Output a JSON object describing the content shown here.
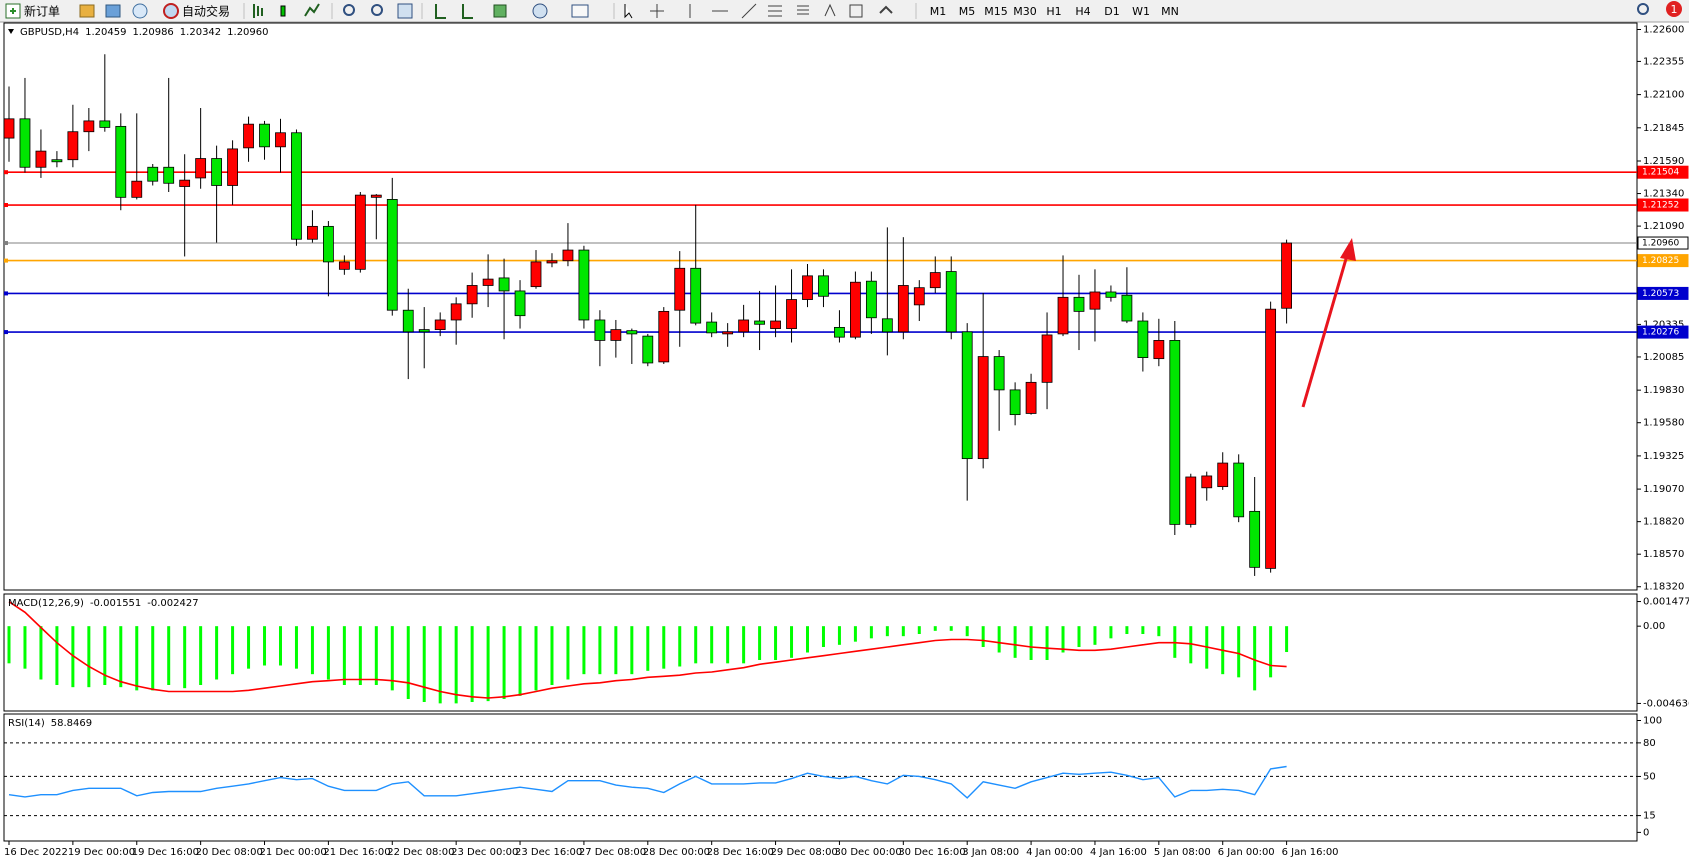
{
  "toolbar": {
    "new_order": "新订单",
    "auto_trading": "自动交易",
    "timeframes": [
      "M1",
      "M5",
      "M15",
      "M30",
      "H1",
      "H4",
      "D1",
      "W1",
      "MN"
    ],
    "notifications": 1
  },
  "chart_data": [
    {
      "type": "candlestick",
      "title": "GBPUSD,H4",
      "header_values": [
        1.20459,
        1.20986,
        1.20342,
        {
          "value": 1.2096,
          "label": "1.20960"
        }
      ],
      "categories": [
        "16 Dec 2022",
        null,
        null,
        null,
        "19 Dec 00:00",
        null,
        null,
        null,
        "19 Dec 16:00",
        null,
        null,
        null,
        "20 Dec 08:00",
        null,
        null,
        null,
        "21 Dec 00:00",
        null,
        null,
        null,
        "21 Dec 16:00",
        null,
        null,
        null,
        "22 Dec 08:00",
        null,
        null,
        null,
        "23 Dec 00:00",
        null,
        null,
        null,
        "23 Dec 16:00",
        null,
        null,
        null,
        "27 Dec 08:00",
        null,
        null,
        null,
        "28 Dec 00:00",
        null,
        null,
        null,
        "28 Dec 16:00",
        null,
        null,
        null,
        "29 Dec 08:00",
        null,
        null,
        null,
        "30 Dec 00:00",
        null,
        null,
        null,
        "30 Dec 16:00",
        null,
        null,
        null,
        "3 Jan 08:00",
        null,
        null,
        null,
        "4 Jan 00:00",
        null,
        null,
        null,
        "4 Jan 16:00",
        null,
        null,
        null,
        "5 Jan 08:00",
        null,
        null,
        null,
        "6 Jan 00:00",
        null,
        null,
        null,
        "6 Jan 16:00"
      ],
      "open": [
        1.21766,
        1.21914,
        1.21542,
        1.216,
        1.216,
        1.21815,
        1.21898,
        1.21856,
        1.21311,
        1.21542,
        1.21542,
        1.21394,
        1.2146,
        1.21609,
        1.21402,
        1.21691,
        1.21873,
        1.21699,
        1.21807,
        1.20989,
        1.21088,
        1.20758,
        1.20758,
        1.21311,
        1.21295,
        1.20444,
        1.20295,
        1.20295,
        1.20369,
        1.20493,
        1.20634,
        1.20692,
        1.20592,
        1.20625,
        1.20807,
        1.20824,
        1.20906,
        1.20369,
        1.20212,
        1.20287,
        1.20245,
        1.20047,
        1.20444,
        1.20766,
        1.20353,
        1.20262,
        1.20278,
        1.20361,
        1.20303,
        1.20303,
        1.20526,
        1.20708,
        1.20312,
        1.20237,
        1.20667,
        1.20378,
        1.20278,
        1.20485,
        1.20617,
        1.20741,
        1.20278,
        1.19304,
        1.20088,
        1.19832,
        1.19651,
        1.1989,
        1.20262,
        1.20543,
        1.20452,
        1.20584,
        1.20559,
        1.20361,
        1.20072,
        1.20212,
        1.18799,
        1.1908,
        1.19089,
        1.1927,
        1.18899,
        1.18461,
        1.20459
      ],
      "high": [
        1.22162,
        1.22228,
        1.21832,
        1.21666,
        1.22022,
        1.21997,
        1.2241,
        1.21956,
        1.21956,
        1.21567,
        1.22228,
        1.21642,
        1.21997,
        1.21708,
        1.21749,
        1.21931,
        1.21898,
        1.21914,
        1.21832,
        1.21212,
        1.21129,
        1.20865,
        1.21352,
        1.21336,
        1.2146,
        1.20609,
        1.20468,
        1.20427,
        1.20543,
        1.20733,
        1.20873,
        1.2084,
        1.20675,
        1.20906,
        1.20882,
        1.21113,
        1.20939,
        1.20444,
        1.20369,
        1.20303,
        1.20262,
        1.20468,
        1.20898,
        1.21253,
        1.20427,
        1.20345,
        1.20485,
        1.20592,
        1.20634,
        1.20758,
        1.20799,
        1.20758,
        1.20444,
        1.20741,
        1.20741,
        1.2108,
        1.21005,
        1.20675,
        1.20857,
        1.20857,
        1.20345,
        1.20576,
        1.20138,
        1.1989,
        1.19956,
        1.20427,
        1.20865,
        1.20716,
        1.20758,
        1.20634,
        1.20774,
        1.20427,
        1.20378,
        1.20361,
        1.19188,
        1.19204,
        1.19353,
        1.19337,
        1.19163,
        1.2051,
        1.20986
      ],
      "low": [
        1.21584,
        1.21501,
        1.2146,
        1.21542,
        1.21542,
        1.21666,
        1.21815,
        1.21212,
        1.21295,
        1.21402,
        1.21352,
        1.20857,
        1.21377,
        1.20964,
        1.21253,
        1.21584,
        1.216,
        1.21501,
        1.20939,
        1.20964,
        1.20551,
        1.20716,
        1.20733,
        1.20989,
        1.20402,
        1.19915,
        1.19998,
        1.20245,
        1.20179,
        1.20386,
        1.20468,
        1.20221,
        1.20303,
        1.20609,
        1.20774,
        1.20782,
        1.20303,
        1.20014,
        1.2008,
        1.20031,
        1.20014,
        1.20031,
        1.20163,
        1.20328,
        1.20237,
        1.20163,
        1.20237,
        1.20138,
        1.20237,
        1.20196,
        1.20468,
        1.20468,
        1.20196,
        1.20221,
        1.20262,
        1.20097,
        1.20221,
        1.20361,
        1.20576,
        1.20221,
        1.18981,
        1.19229,
        1.19518,
        1.1956,
        1.19642,
        1.19684,
        1.20245,
        1.20138,
        1.20204,
        1.2051,
        1.20345,
        1.19973,
        1.20014,
        1.18717,
        1.18775,
        1.18981,
        1.19064,
        1.18816,
        1.18403,
        1.18428,
        1.20342
      ],
      "close": [
        1.21914,
        1.21542,
        1.21666,
        1.21584,
        1.21815,
        1.21898,
        1.21848,
        1.21311,
        1.21435,
        1.21435,
        1.21419,
        1.21443,
        1.21609,
        1.21402,
        1.21683,
        1.21873,
        1.21699,
        1.21807,
        1.20989,
        1.21088,
        1.20815,
        1.20815,
        1.21328,
        1.21328,
        1.20444,
        1.20278,
        1.20278,
        1.20369,
        1.20493,
        1.20634,
        1.20683,
        1.20592,
        1.20402,
        1.20815,
        1.20824,
        1.20906,
        1.20369,
        1.20212,
        1.20295,
        1.20262,
        1.20039,
        1.20435,
        1.20766,
        1.20345,
        1.2027,
        1.20278,
        1.20369,
        1.20336,
        1.20361,
        1.20526,
        1.20708,
        1.20551,
        1.20237,
        1.20659,
        1.20386,
        1.20278,
        1.20634,
        1.20617,
        1.20733,
        1.20278,
        1.19304,
        1.20088,
        1.19832,
        1.19642,
        1.1989,
        1.20254,
        1.20543,
        1.20435,
        1.20584,
        1.20543,
        1.20361,
        1.2008,
        1.20212,
        1.18799,
        1.19163,
        1.19171,
        1.1927,
        1.18857,
        1.18469,
        1.20452,
        1.2096
      ],
      "up_color": "#ff0000",
      "down_color": "#00e600",
      "ylim": [
        1.18295,
        1.2265
      ],
      "yticks": [
        {
          "value": 1.226,
          "label": "1.22600"
        },
        1.22355,
        {
          "value": 1.221,
          "label": "1.22100"
        },
        1.21845,
        {
          "value": 1.2159,
          "label": "1.21590"
        },
        {
          "value": 1.2134,
          "label": "1.21340"
        },
        {
          "value": 1.2109,
          "label": "1.21090"
        },
        1.20335,
        1.20085,
        {
          "value": 1.1983,
          "label": "1.19830"
        },
        {
          "value": 1.1958,
          "label": "1.19580"
        },
        1.19325,
        {
          "value": 1.1907,
          "label": "1.19070"
        },
        {
          "value": 1.1882,
          "label": "1.18820"
        },
        {
          "value": 1.1857,
          "label": "1.18570"
        },
        {
          "value": 1.1832,
          "label": "1.18320"
        }
      ],
      "grid": false,
      "hlines": [
        {
          "value": 1.21504,
          "color": "#ff0000"
        },
        {
          "value": 1.21252,
          "color": "#ff0000"
        },
        {
          "value": 1.2096,
          "label": "1.20960",
          "color": "#808080"
        },
        {
          "value": 1.20825,
          "color": "#ffa500"
        },
        {
          "value": 1.20573,
          "color": "#0000cd"
        },
        {
          "value": 1.20276,
          "color": "#0000cd"
        }
      ]
    },
    {
      "type": "macd",
      "title": "MACD(12,26,9)",
      "header_values": [
        -0.001551,
        -0.002427
      ],
      "ylim": [
        -0.00509,
        0.00193
      ],
      "yticks": [
        0.001477,
        {
          "value": 0,
          "label": "0.00"
        },
        -0.004636
      ],
      "series": [
        {
          "kind": "histogram",
          "color": "#00ff00",
          "values": [
            -0.00223,
            -0.00255,
            -0.0032,
            -0.00353,
            -0.00366,
            -0.00366,
            -0.00353,
            -0.00366,
            -0.00385,
            -0.00385,
            -0.00353,
            -0.00372,
            -0.00353,
            -0.0032,
            -0.00288,
            -0.00255,
            -0.00236,
            -0.00236,
            -0.00255,
            -0.00288,
            -0.0032,
            -0.00353,
            -0.00353,
            -0.00353,
            -0.00385,
            -0.00437,
            -0.00455,
            -0.00463,
            -0.00463,
            -0.00455,
            -0.0045,
            -0.00437,
            -0.00418,
            -0.00385,
            -0.00353,
            -0.0032,
            -0.00288,
            -0.00288,
            -0.00288,
            -0.00288,
            -0.00268,
            -0.00255,
            -0.00242,
            -0.00223,
            -0.00223,
            -0.00223,
            -0.00223,
            -0.00203,
            -0.00203,
            -0.0019,
            -0.00158,
            -0.00125,
            -0.00112,
            -0.00093,
            -0.00073,
            -0.0006,
            -0.0006,
            -0.00047,
            -0.00028,
            -0.00028,
            -0.0006,
            -0.00125,
            -0.00158,
            -0.0019,
            -0.00203,
            -0.00203,
            -0.00158,
            -0.00125,
            -0.00112,
            -0.00073,
            -0.00047,
            -0.00047,
            -0.0006,
            -0.0019,
            -0.00223,
            -0.00255,
            -0.00288,
            -0.00307,
            -0.00385,
            -0.00307,
            -0.001551
          ]
        },
        {
          "kind": "line",
          "color": "#ff0000",
          "values": [
            0.00147,
            0.00083,
            -8e-05,
            -0.00099,
            -0.00177,
            -0.00242,
            -0.00294,
            -0.00333,
            -0.00359,
            -0.00379,
            -0.00392,
            -0.00392,
            -0.00392,
            -0.00392,
            -0.00392,
            -0.00385,
            -0.00372,
            -0.00359,
            -0.00346,
            -0.00333,
            -0.00327,
            -0.0032,
            -0.0032,
            -0.0032,
            -0.00327,
            -0.0034,
            -0.00366,
            -0.00392,
            -0.00411,
            -0.00424,
            -0.00431,
            -0.00424,
            -0.00411,
            -0.00392,
            -0.00372,
            -0.00359,
            -0.00346,
            -0.0034,
            -0.00327,
            -0.0032,
            -0.00307,
            -0.00301,
            -0.00294,
            -0.00281,
            -0.00275,
            -0.00262,
            -0.00249,
            -0.00229,
            -0.00216,
            -0.00203,
            -0.0019,
            -0.00177,
            -0.00164,
            -0.00151,
            -0.00138,
            -0.00125,
            -0.00112,
            -0.00099,
            -0.00086,
            -0.0008,
            -0.0008,
            -0.00086,
            -0.00099,
            -0.00112,
            -0.00125,
            -0.00132,
            -0.00138,
            -0.00145,
            -0.00145,
            -0.00138,
            -0.00125,
            -0.00112,
            -0.00099,
            -0.00099,
            -0.00106,
            -0.00125,
            -0.00145,
            -0.00164,
            -0.00203,
            -0.00236,
            -0.002427
          ]
        }
      ]
    },
    {
      "type": "line",
      "title": "RSI(14)",
      "header_values": [
        58.8469
      ],
      "ylim": [
        -7.7,
        105.8
      ],
      "yticks": [
        100,
        80,
        50,
        15,
        0
      ],
      "levels": [
        80,
        50,
        15
      ],
      "color": "#1e90ff",
      "values": [
        33.7,
        31.7,
        33.7,
        33.7,
        37.5,
        39.4,
        39.4,
        39.4,
        32.7,
        35.6,
        36.5,
        36.5,
        36.5,
        39.4,
        41.3,
        43.3,
        46.2,
        49.0,
        47.1,
        48.1,
        41.3,
        37.5,
        37.5,
        37.5,
        43.3,
        45.2,
        32.7,
        32.7,
        32.7,
        34.6,
        36.5,
        38.5,
        40.4,
        38.5,
        36.5,
        46.2,
        46.2,
        46.2,
        42.3,
        40.4,
        39.4,
        35.6,
        43.3,
        50.0,
        43.3,
        43.3,
        43.3,
        44.2,
        44.2,
        48.1,
        52.9,
        50.0,
        48.1,
        50.0,
        46.2,
        43.3,
        51.0,
        50.0,
        47.1,
        43.3,
        30.8,
        45.2,
        42.3,
        39.4,
        45.2,
        49.0,
        52.9,
        51.9,
        52.9,
        53.8,
        51.0,
        47.1,
        49.0,
        31.7,
        37.5,
        37.5,
        38.5,
        37.5,
        33.7,
        56.7,
        58.8469
      ]
    }
  ]
}
